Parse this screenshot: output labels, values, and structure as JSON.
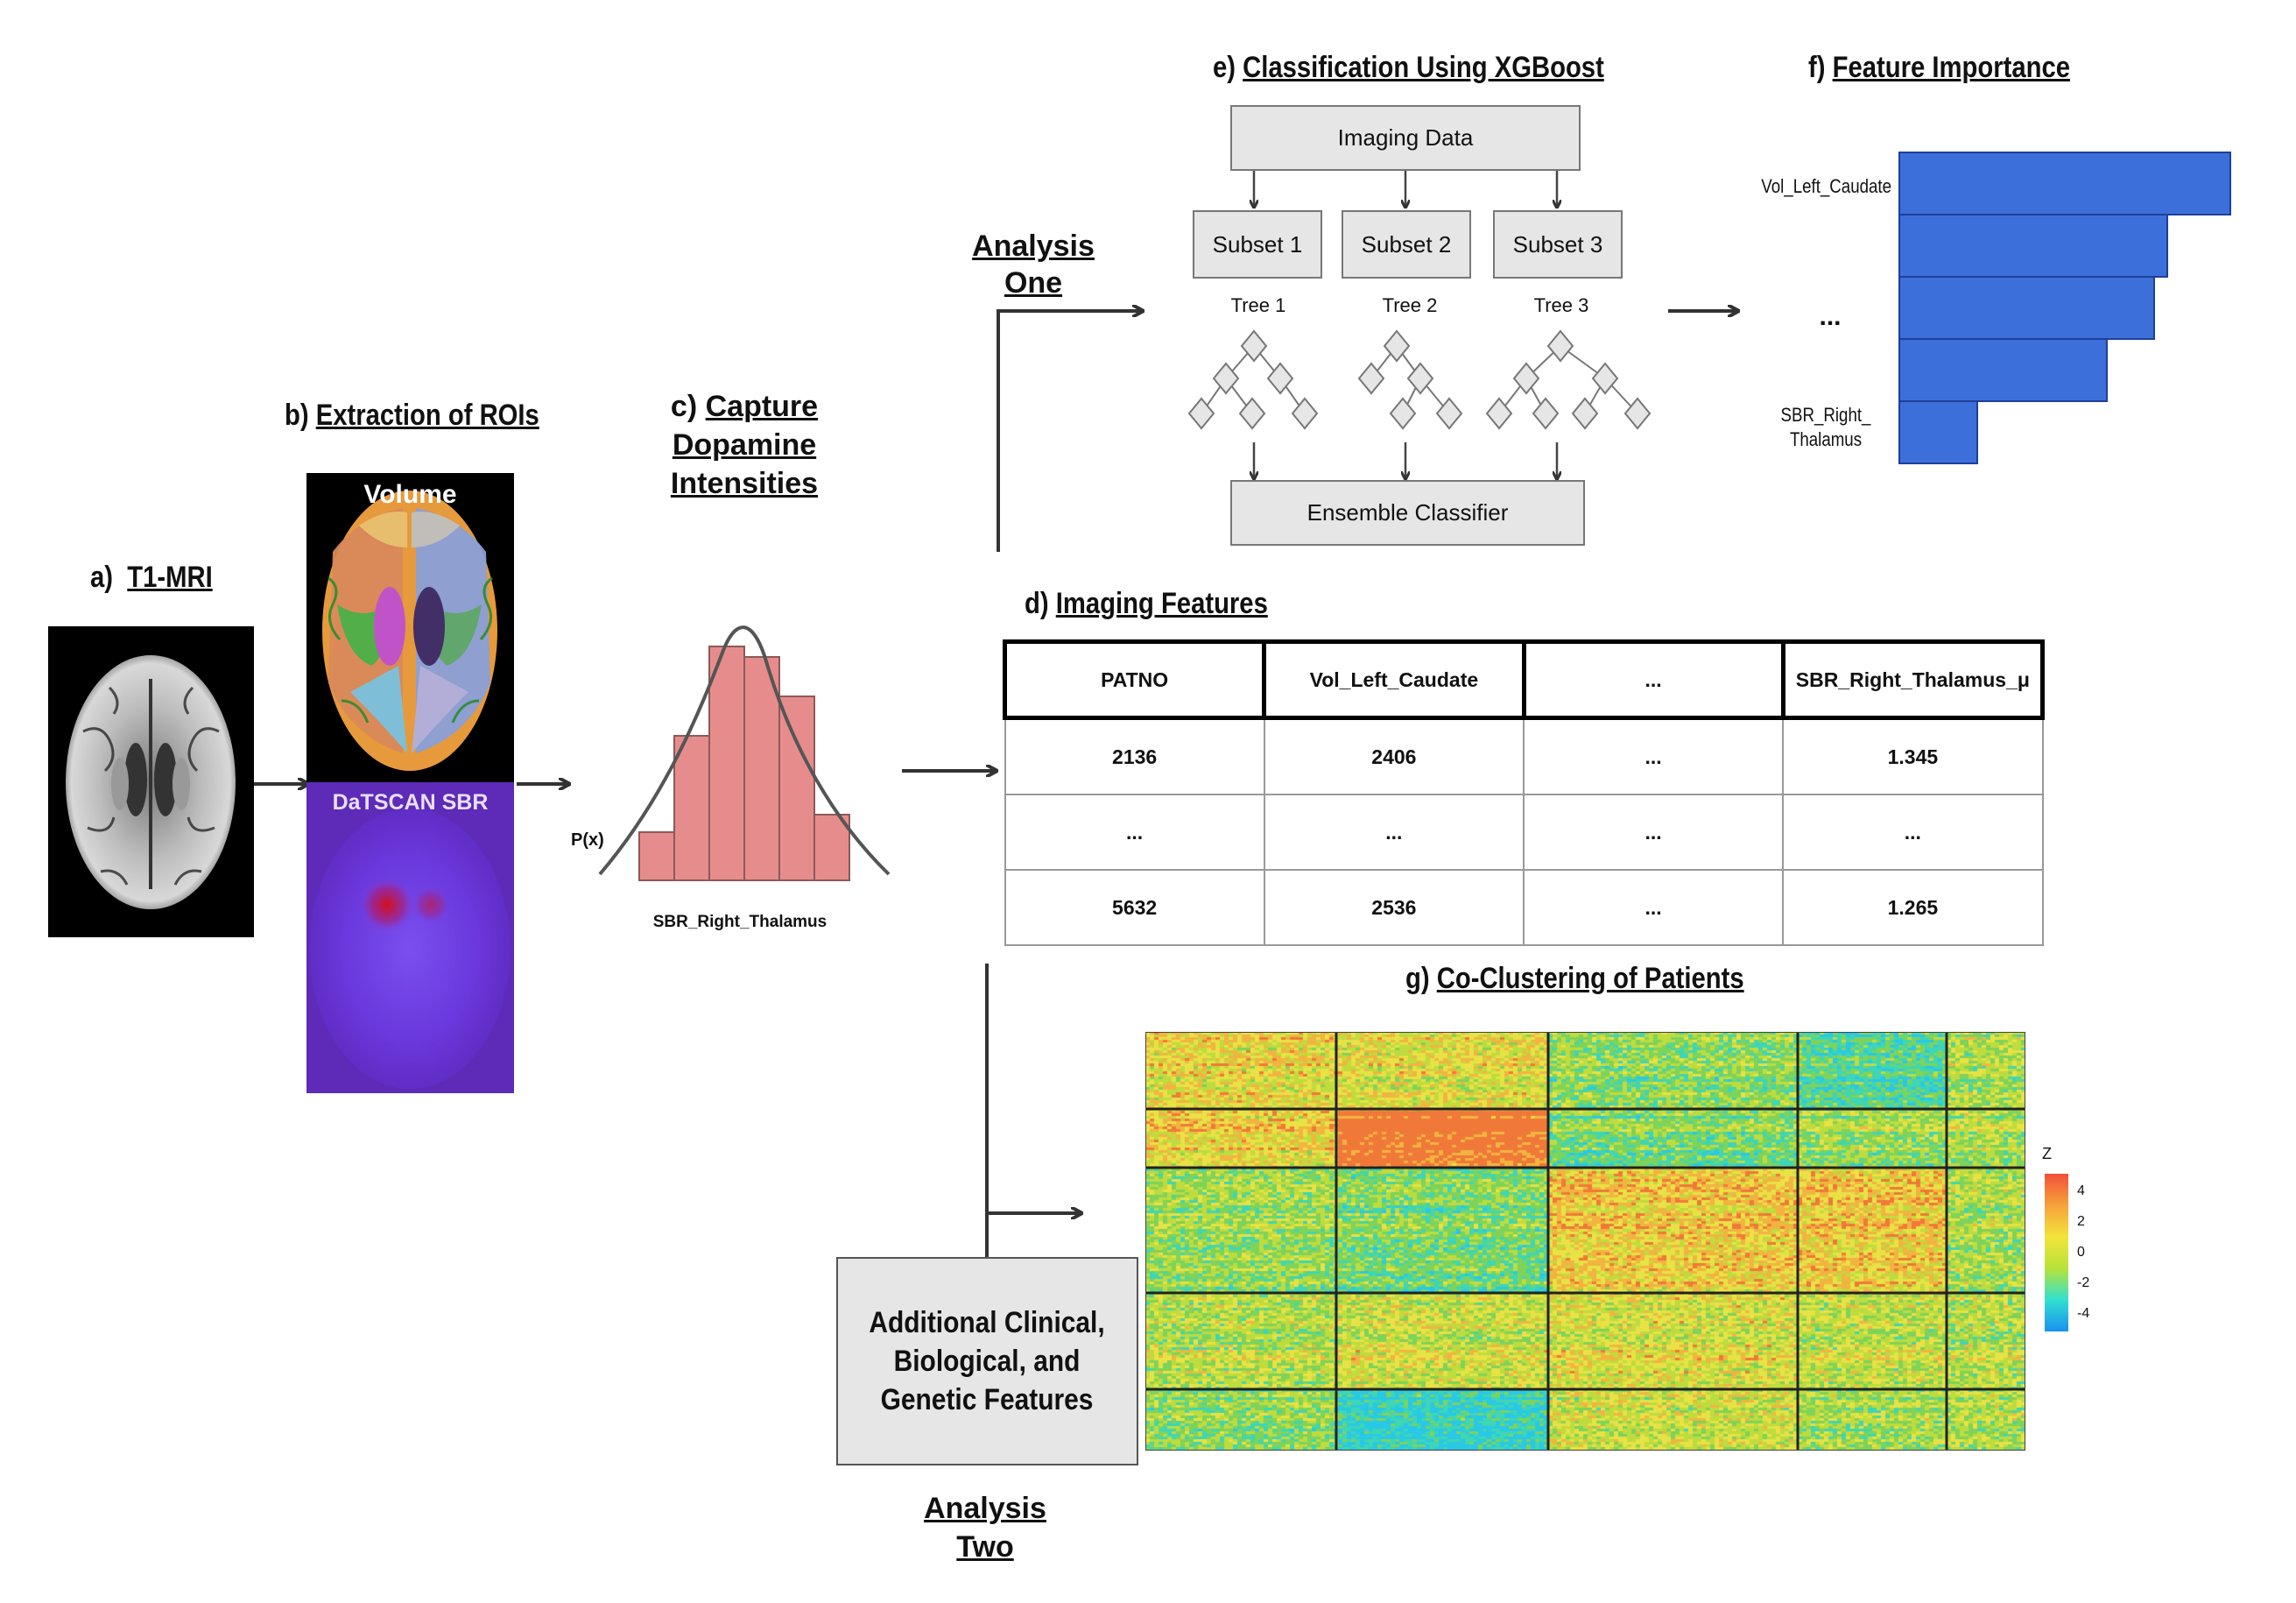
{
  "panels": {
    "a": {
      "letter": "a)",
      "title": "T1-MRI"
    },
    "b": {
      "letter": "b)",
      "title": "Extraction of ROIs",
      "volume_label": "Volume",
      "datscan_label": "DaTSCAN SBR"
    },
    "c": {
      "letter": "c)",
      "title_line1": "Capture Dopamine",
      "title_line2": "Intensities",
      "px_label": "P(x)",
      "x_label": "SBR_Right_Thalamus"
    },
    "d": {
      "letter": "d)",
      "title": "Imaging Features"
    },
    "e": {
      "letter": "e)",
      "title": "Classification Using XGBoost",
      "imaging_data": "Imaging Data",
      "subsets": [
        "Subset 1",
        "Subset 2",
        "Subset 3"
      ],
      "trees": [
        "Tree 1",
        "Tree 2",
        "Tree 3"
      ],
      "ensemble": "Ensemble Classifier"
    },
    "f": {
      "letter": "f)",
      "title": "Feature Importance",
      "labels": {
        "top": "Vol_Left_Caudate",
        "middle": "...",
        "bottom_line1": "SBR_Right_",
        "bottom_line2": "Thalamus"
      },
      "importances": [
        1.0,
        0.81,
        0.77,
        0.63,
        0.24
      ]
    },
    "g": {
      "letter": "g)",
      "title": "Co-Clustering of Patients",
      "legend_title": "Z",
      "legend_ticks": [
        "4",
        "2",
        "0",
        "-2",
        "-4"
      ]
    }
  },
  "analysis_one": {
    "line1": "Analysis",
    "line2": "One"
  },
  "analysis_two": {
    "line1": "Analysis",
    "line2": "Two"
  },
  "additional_box": {
    "line1": "Additional Clinical,",
    "line2": "Biological, and",
    "line3": "Genetic Features"
  },
  "table": {
    "headers": [
      "PATNO",
      "Vol_Left_Caudate",
      "...",
      "SBR_Right_Thalamus_μ"
    ],
    "rows": [
      [
        "2136",
        "2406",
        "...",
        "1.345"
      ],
      [
        "...",
        "...",
        "...",
        "..."
      ],
      [
        "5632",
        "2536",
        "...",
        "1.265"
      ]
    ]
  },
  "colors": {
    "bar_blue": "#3c6fd9",
    "histogram_fill": "#e78c8c",
    "box_gray": "#e6e6e6",
    "datscan_purple": "#6a36d8"
  }
}
